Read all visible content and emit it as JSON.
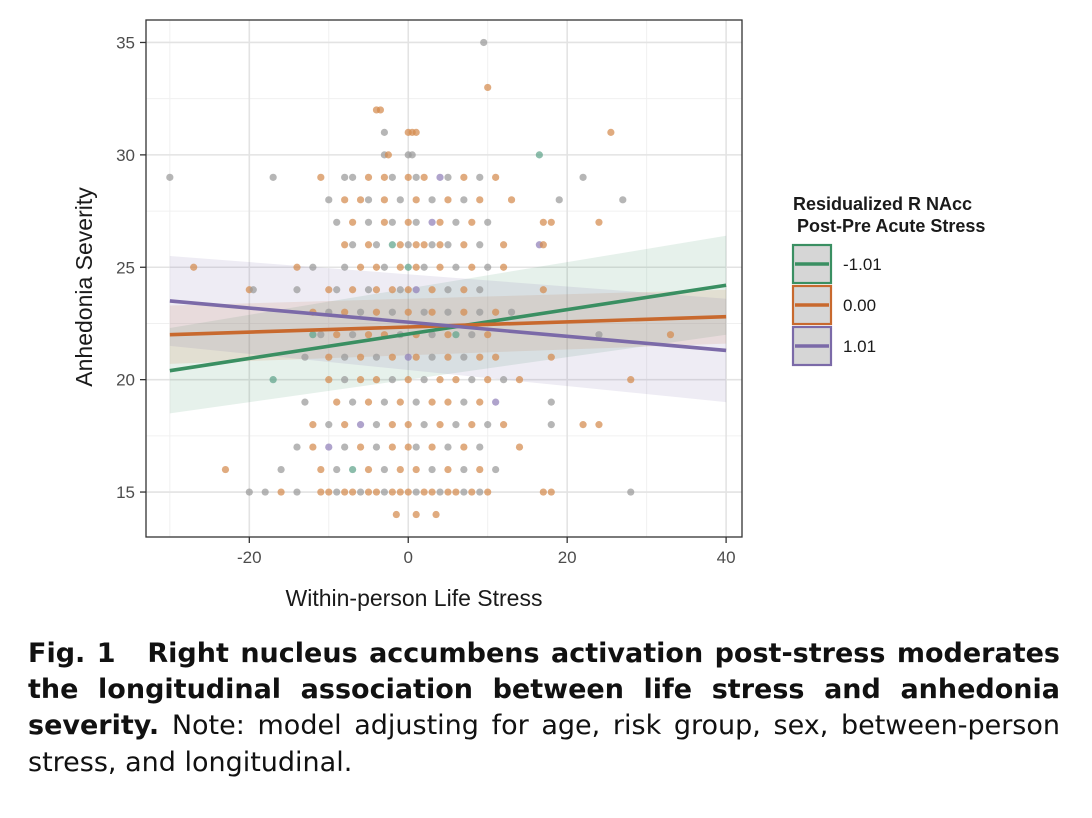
{
  "chart_data": {
    "type": "scatter",
    "xlabel": "Within-person Life Stress",
    "ylabel": "Anhedonia Severity",
    "xlim": [
      -33,
      42
    ],
    "ylim": [
      13,
      36
    ],
    "x_ticks": [
      -20,
      0,
      20,
      40
    ],
    "x_tick_labels": [
      "-20",
      "0",
      "20",
      "40"
    ],
    "y_ticks": [
      15,
      20,
      25,
      30,
      35
    ],
    "y_tick_labels": [
      "15",
      "20",
      "25",
      "30",
      "35"
    ],
    "grid": true,
    "legend": {
      "placement": "right",
      "title_line1": "Residualized R NAcc",
      "title_line2": "Post-Pre Acute Stress",
      "entries": [
        {
          "label": "-1.01",
          "color": "#3a8f62"
        },
        {
          "label": "0.00",
          "color": "#c8692e"
        },
        {
          "label": "1.01",
          "color": "#7b6aa8"
        }
      ]
    },
    "series": [
      {
        "name": "-1.01",
        "color": "#3a8f62",
        "line": {
          "x": [
            -30,
            40
          ],
          "y": [
            20.4,
            24.2
          ]
        },
        "ci_lower": [
          18.5,
          22.0
        ],
        "ci_upper": [
          22.3,
          26.4
        ]
      },
      {
        "name": "0.00",
        "color": "#c8692e",
        "line": {
          "x": [
            -30,
            40
          ],
          "y": [
            22.0,
            22.8
          ]
        },
        "ci_lower": [
          20.7,
          21.6
        ],
        "ci_upper": [
          23.3,
          24.0
        ]
      },
      {
        "name": "1.01",
        "color": "#7b6aa8",
        "line": {
          "x": [
            -30,
            40
          ],
          "y": [
            23.5,
            21.3
          ]
        },
        "ci_lower": [
          21.5,
          19.0
        ],
        "ci_upper": [
          25.5,
          23.6
        ]
      }
    ],
    "points": [
      [
        9.5,
        35,
        "gray"
      ],
      [
        10,
        33,
        "orange"
      ],
      [
        -4,
        32,
        "orange"
      ],
      [
        -3.5,
        32,
        "orange"
      ],
      [
        25.5,
        31,
        "orange"
      ],
      [
        -3,
        31,
        "gray"
      ],
      [
        0,
        31,
        "orange"
      ],
      [
        0.5,
        31,
        "orange"
      ],
      [
        1,
        31,
        "orange"
      ],
      [
        -30,
        29,
        "gray"
      ],
      [
        -17,
        29,
        "gray"
      ],
      [
        -11,
        29,
        "orange"
      ],
      [
        -8,
        29,
        "gray"
      ],
      [
        -7,
        29,
        "gray"
      ],
      [
        -5,
        29,
        "orange"
      ],
      [
        -3,
        29,
        "orange"
      ],
      [
        -2,
        29,
        "gray"
      ],
      [
        0,
        29,
        "orange"
      ],
      [
        1,
        29,
        "gray"
      ],
      [
        2,
        29,
        "orange"
      ],
      [
        4,
        29,
        "purple"
      ],
      [
        5,
        29,
        "gray"
      ],
      [
        7,
        29,
        "orange"
      ],
      [
        9,
        29,
        "gray"
      ],
      [
        11,
        29,
        "orange"
      ],
      [
        22,
        29,
        "gray"
      ],
      [
        -3,
        30,
        "gray"
      ],
      [
        -2.5,
        30,
        "orange"
      ],
      [
        0,
        30,
        "gray"
      ],
      [
        0.5,
        30,
        "gray"
      ],
      [
        16.5,
        30,
        "green"
      ],
      [
        -10,
        28,
        "gray"
      ],
      [
        -8,
        28,
        "orange"
      ],
      [
        -6,
        28,
        "orange"
      ],
      [
        -5,
        28,
        "gray"
      ],
      [
        -3,
        28,
        "orange"
      ],
      [
        -1,
        28,
        "gray"
      ],
      [
        1,
        28,
        "orange"
      ],
      [
        3,
        28,
        "gray"
      ],
      [
        5,
        28,
        "orange"
      ],
      [
        7,
        28,
        "gray"
      ],
      [
        9,
        28,
        "orange"
      ],
      [
        13,
        28,
        "orange"
      ],
      [
        19,
        28,
        "gray"
      ],
      [
        27,
        28,
        "gray"
      ],
      [
        -9,
        27,
        "gray"
      ],
      [
        -7,
        27,
        "orange"
      ],
      [
        -5,
        27,
        "gray"
      ],
      [
        -3,
        27,
        "orange"
      ],
      [
        -2,
        27,
        "gray"
      ],
      [
        0,
        27,
        "orange"
      ],
      [
        1,
        27,
        "gray"
      ],
      [
        3,
        27,
        "purple"
      ],
      [
        4,
        27,
        "orange"
      ],
      [
        6,
        27,
        "gray"
      ],
      [
        8,
        27,
        "orange"
      ],
      [
        10,
        27,
        "gray"
      ],
      [
        17,
        27,
        "orange"
      ],
      [
        18,
        27,
        "orange"
      ],
      [
        24,
        27,
        "orange"
      ],
      [
        -8,
        26,
        "orange"
      ],
      [
        -7,
        26,
        "gray"
      ],
      [
        -5,
        26,
        "orange"
      ],
      [
        -4,
        26,
        "gray"
      ],
      [
        -2,
        26,
        "green"
      ],
      [
        -1,
        26,
        "orange"
      ],
      [
        0,
        26,
        "gray"
      ],
      [
        1,
        26,
        "orange"
      ],
      [
        2,
        26,
        "orange"
      ],
      [
        3,
        26,
        "gray"
      ],
      [
        4,
        26,
        "orange"
      ],
      [
        5,
        26,
        "gray"
      ],
      [
        7,
        26,
        "orange"
      ],
      [
        9,
        26,
        "gray"
      ],
      [
        12,
        26,
        "orange"
      ],
      [
        16.5,
        26,
        "purple"
      ],
      [
        17,
        26,
        "orange"
      ],
      [
        -27,
        25,
        "orange"
      ],
      [
        -14,
        25,
        "orange"
      ],
      [
        -12,
        25,
        "gray"
      ],
      [
        -8,
        25,
        "gray"
      ],
      [
        -6,
        25,
        "orange"
      ],
      [
        -4,
        25,
        "orange"
      ],
      [
        -3,
        25,
        "gray"
      ],
      [
        -1,
        25,
        "orange"
      ],
      [
        0,
        25,
        "green"
      ],
      [
        1,
        25,
        "orange"
      ],
      [
        2,
        25,
        "gray"
      ],
      [
        4,
        25,
        "orange"
      ],
      [
        6,
        25,
        "gray"
      ],
      [
        8,
        25,
        "orange"
      ],
      [
        10,
        25,
        "gray"
      ],
      [
        12,
        25,
        "orange"
      ],
      [
        -20,
        24,
        "orange"
      ],
      [
        -19.5,
        24,
        "gray"
      ],
      [
        -14,
        24,
        "gray"
      ],
      [
        -10,
        24,
        "orange"
      ],
      [
        -9,
        24,
        "gray"
      ],
      [
        -7,
        24,
        "orange"
      ],
      [
        -5,
        24,
        "gray"
      ],
      [
        -4,
        24,
        "orange"
      ],
      [
        -2,
        24,
        "orange"
      ],
      [
        -1,
        24,
        "gray"
      ],
      [
        0,
        24,
        "orange"
      ],
      [
        1,
        24,
        "purple"
      ],
      [
        3,
        24,
        "orange"
      ],
      [
        5,
        24,
        "gray"
      ],
      [
        7,
        24,
        "orange"
      ],
      [
        9,
        24,
        "gray"
      ],
      [
        17,
        24,
        "orange"
      ],
      [
        -12,
        23,
        "orange"
      ],
      [
        -10,
        23,
        "gray"
      ],
      [
        -8,
        23,
        "orange"
      ],
      [
        -6,
        23,
        "gray"
      ],
      [
        -4,
        23,
        "orange"
      ],
      [
        -2,
        23,
        "gray"
      ],
      [
        0,
        23,
        "orange"
      ],
      [
        2,
        23,
        "gray"
      ],
      [
        3,
        23,
        "orange"
      ],
      [
        5,
        23,
        "gray"
      ],
      [
        7,
        23,
        "orange"
      ],
      [
        9,
        23,
        "gray"
      ],
      [
        11,
        23,
        "orange"
      ],
      [
        13,
        23,
        "gray"
      ],
      [
        -12,
        22,
        "green"
      ],
      [
        -11,
        22,
        "gray"
      ],
      [
        -9,
        22,
        "orange"
      ],
      [
        -7,
        22,
        "gray"
      ],
      [
        -5,
        22,
        "orange"
      ],
      [
        -3,
        22,
        "orange"
      ],
      [
        -1,
        22,
        "gray"
      ],
      [
        1,
        22,
        "orange"
      ],
      [
        3,
        22,
        "gray"
      ],
      [
        5,
        22,
        "orange"
      ],
      [
        6,
        22,
        "green"
      ],
      [
        8,
        22,
        "gray"
      ],
      [
        10,
        22,
        "orange"
      ],
      [
        24,
        22,
        "gray"
      ],
      [
        33,
        22,
        "orange"
      ],
      [
        -13,
        21,
        "gray"
      ],
      [
        -10,
        21,
        "orange"
      ],
      [
        -8,
        21,
        "gray"
      ],
      [
        -6,
        21,
        "orange"
      ],
      [
        -4,
        21,
        "gray"
      ],
      [
        -2,
        21,
        "orange"
      ],
      [
        0,
        21,
        "purple"
      ],
      [
        1,
        21,
        "orange"
      ],
      [
        3,
        21,
        "gray"
      ],
      [
        5,
        21,
        "orange"
      ],
      [
        7,
        21,
        "gray"
      ],
      [
        9,
        21,
        "orange"
      ],
      [
        11,
        21,
        "orange"
      ],
      [
        18,
        21,
        "orange"
      ],
      [
        -17,
        20,
        "green"
      ],
      [
        -10,
        20,
        "orange"
      ],
      [
        -8,
        20,
        "gray"
      ],
      [
        -6,
        20,
        "orange"
      ],
      [
        -4,
        20,
        "orange"
      ],
      [
        -2,
        20,
        "gray"
      ],
      [
        0,
        20,
        "orange"
      ],
      [
        2,
        20,
        "gray"
      ],
      [
        4,
        20,
        "orange"
      ],
      [
        6,
        20,
        "orange"
      ],
      [
        8,
        20,
        "gray"
      ],
      [
        10,
        20,
        "orange"
      ],
      [
        12,
        20,
        "gray"
      ],
      [
        14,
        20,
        "orange"
      ],
      [
        28,
        20,
        "orange"
      ],
      [
        -13,
        19,
        "gray"
      ],
      [
        -9,
        19,
        "orange"
      ],
      [
        -7,
        19,
        "gray"
      ],
      [
        -5,
        19,
        "orange"
      ],
      [
        -3,
        19,
        "gray"
      ],
      [
        -1,
        19,
        "orange"
      ],
      [
        1,
        19,
        "gray"
      ],
      [
        3,
        19,
        "orange"
      ],
      [
        5,
        19,
        "orange"
      ],
      [
        7,
        19,
        "gray"
      ],
      [
        9,
        19,
        "orange"
      ],
      [
        11,
        19,
        "purple"
      ],
      [
        18,
        19,
        "gray"
      ],
      [
        -12,
        18,
        "orange"
      ],
      [
        -10,
        18,
        "gray"
      ],
      [
        -8,
        18,
        "orange"
      ],
      [
        -6,
        18,
        "purple"
      ],
      [
        -4,
        18,
        "gray"
      ],
      [
        -2,
        18,
        "orange"
      ],
      [
        0,
        18,
        "orange"
      ],
      [
        2,
        18,
        "gray"
      ],
      [
        4,
        18,
        "orange"
      ],
      [
        6,
        18,
        "gray"
      ],
      [
        8,
        18,
        "orange"
      ],
      [
        10,
        18,
        "gray"
      ],
      [
        12,
        18,
        "orange"
      ],
      [
        18,
        18,
        "gray"
      ],
      [
        22,
        18,
        "orange"
      ],
      [
        24,
        18,
        "orange"
      ],
      [
        -14,
        17,
        "gray"
      ],
      [
        -12,
        17,
        "orange"
      ],
      [
        -10,
        17,
        "purple"
      ],
      [
        -8,
        17,
        "gray"
      ],
      [
        -6,
        17,
        "orange"
      ],
      [
        -4,
        17,
        "gray"
      ],
      [
        -2,
        17,
        "orange"
      ],
      [
        0,
        17,
        "orange"
      ],
      [
        1,
        17,
        "gray"
      ],
      [
        3,
        17,
        "orange"
      ],
      [
        5,
        17,
        "gray"
      ],
      [
        7,
        17,
        "orange"
      ],
      [
        9,
        17,
        "gray"
      ],
      [
        14,
        17,
        "orange"
      ],
      [
        -23,
        16,
        "orange"
      ],
      [
        -16,
        16,
        "gray"
      ],
      [
        -11,
        16,
        "orange"
      ],
      [
        -9,
        16,
        "gray"
      ],
      [
        -7,
        16,
        "green"
      ],
      [
        -5,
        16,
        "orange"
      ],
      [
        -3,
        16,
        "gray"
      ],
      [
        -1,
        16,
        "orange"
      ],
      [
        1,
        16,
        "orange"
      ],
      [
        3,
        16,
        "gray"
      ],
      [
        5,
        16,
        "orange"
      ],
      [
        7,
        16,
        "gray"
      ],
      [
        9,
        16,
        "orange"
      ],
      [
        11,
        16,
        "gray"
      ],
      [
        -20,
        15,
        "gray"
      ],
      [
        -18,
        15,
        "gray"
      ],
      [
        -16,
        15,
        "orange"
      ],
      [
        -14,
        15,
        "gray"
      ],
      [
        -11,
        15,
        "orange"
      ],
      [
        -10,
        15,
        "orange"
      ],
      [
        -9,
        15,
        "gray"
      ],
      [
        -8,
        15,
        "orange"
      ],
      [
        -7,
        15,
        "orange"
      ],
      [
        -6,
        15,
        "gray"
      ],
      [
        -5,
        15,
        "orange"
      ],
      [
        -4,
        15,
        "orange"
      ],
      [
        -3,
        15,
        "gray"
      ],
      [
        -2,
        15,
        "orange"
      ],
      [
        -1,
        15,
        "orange"
      ],
      [
        0,
        15,
        "orange"
      ],
      [
        1,
        15,
        "gray"
      ],
      [
        2,
        15,
        "orange"
      ],
      [
        3,
        15,
        "orange"
      ],
      [
        4,
        15,
        "gray"
      ],
      [
        5,
        15,
        "orange"
      ],
      [
        6,
        15,
        "orange"
      ],
      [
        7,
        15,
        "gray"
      ],
      [
        8,
        15,
        "orange"
      ],
      [
        9,
        15,
        "gray"
      ],
      [
        10,
        15,
        "orange"
      ],
      [
        17,
        15,
        "orange"
      ],
      [
        18,
        15,
        "orange"
      ],
      [
        28,
        15,
        "gray"
      ],
      [
        -1.5,
        14,
        "orange"
      ],
      [
        1,
        14,
        "orange"
      ],
      [
        3.5,
        14,
        "orange"
      ]
    ],
    "point_colors": {
      "gray": "#9a9a9a",
      "orange": "#d48a4e",
      "green": "#5fa38a",
      "purple": "#9080b8"
    }
  },
  "caption": {
    "label": "Fig. 1",
    "title": "Right nucleus accumbens activation post-stress moderates the longitudinal association between life stress and anhedonia severity.",
    "note": "Note: model adjusting for age, risk group, sex, between-person stress, and longitudinal."
  }
}
